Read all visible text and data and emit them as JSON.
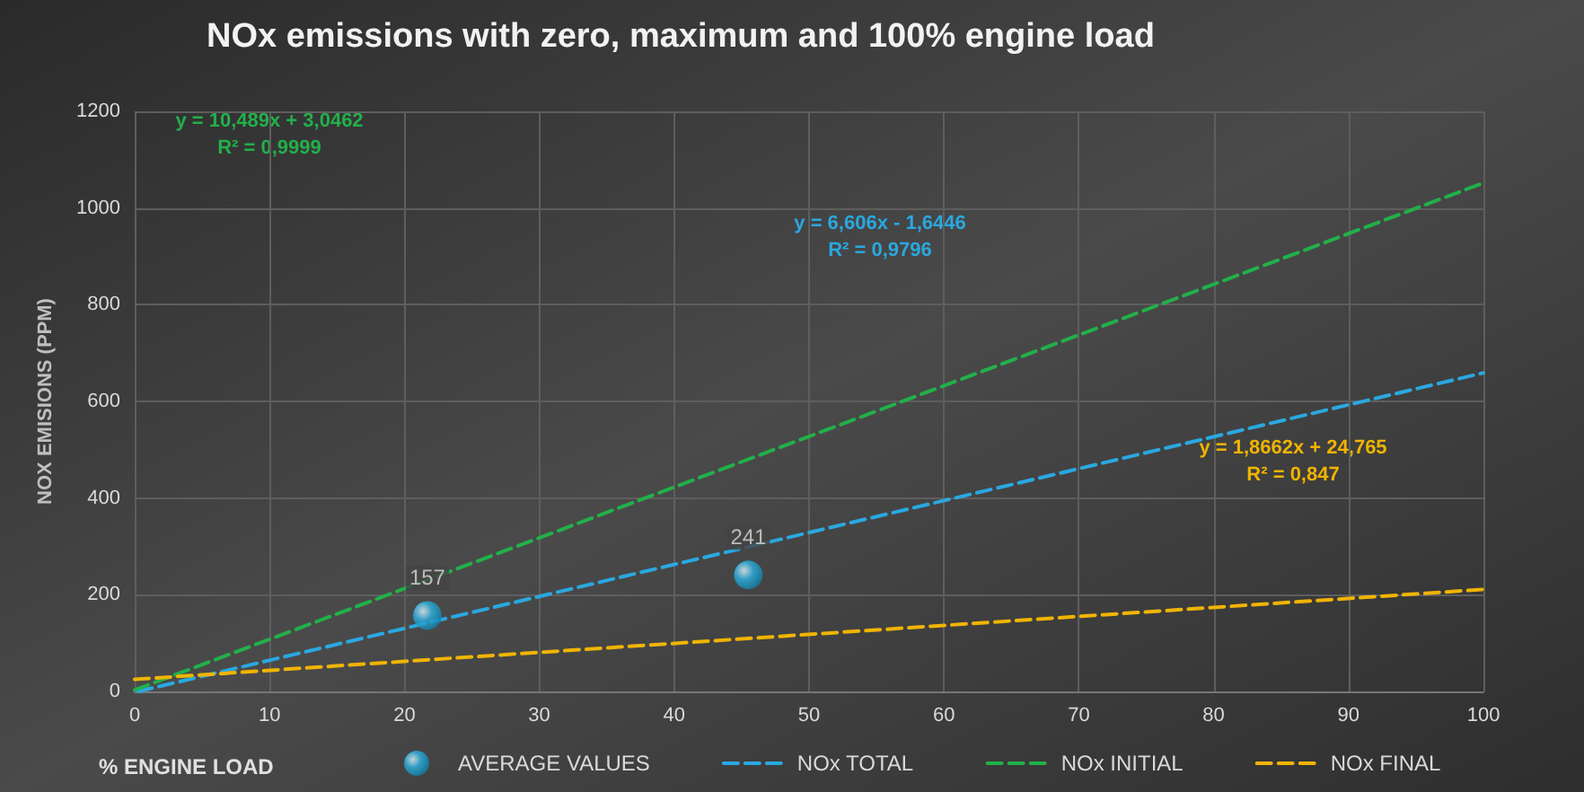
{
  "chart_data": {
    "type": "line",
    "title": "NOx emissions with zero, maximum and 100% engine load",
    "xlabel": "% ENGINE LOAD",
    "ylabel": "NOX EMISIONS (PPM)",
    "series": [
      {
        "name": "AVERAGE VALUES",
        "type": "scatter",
        "color": "#2bb3e3",
        "x": [
          21.7,
          45.5
        ],
        "values": [
          157,
          241
        ],
        "data_labels": true
      },
      {
        "name": "NOx TOTAL",
        "color": "#2aa8e0",
        "x": [
          0.25,
          100
        ],
        "values": [
          0,
          659
        ]
      },
      {
        "name": "NOx INITIAL",
        "color": "#22b04a",
        "x": [
          0,
          100
        ],
        "values": [
          3,
          1052
        ]
      },
      {
        "name": "NOx FINAL",
        "color": "#f0b400",
        "x": [
          0,
          100
        ],
        "values": [
          25,
          211
        ]
      }
    ],
    "annotations": [
      "y = 6,606x - 1,6446\nR² = 0,9796",
      "y = 10,489x + 3,0462\nR² = 0,9999",
      "y = 1,8662x + 24,765\nR² = 0,847"
    ],
    "xlim": [
      0,
      100
    ],
    "xticks": [
      0,
      10,
      20,
      30,
      40,
      50,
      60,
      70,
      80,
      90,
      100
    ],
    "ylim": [
      0,
      1200
    ],
    "yticks": [
      0,
      200,
      400,
      600,
      800,
      1000,
      1200
    ],
    "grid": true,
    "legend": "bottom",
    "line_style": "dashed"
  }
}
